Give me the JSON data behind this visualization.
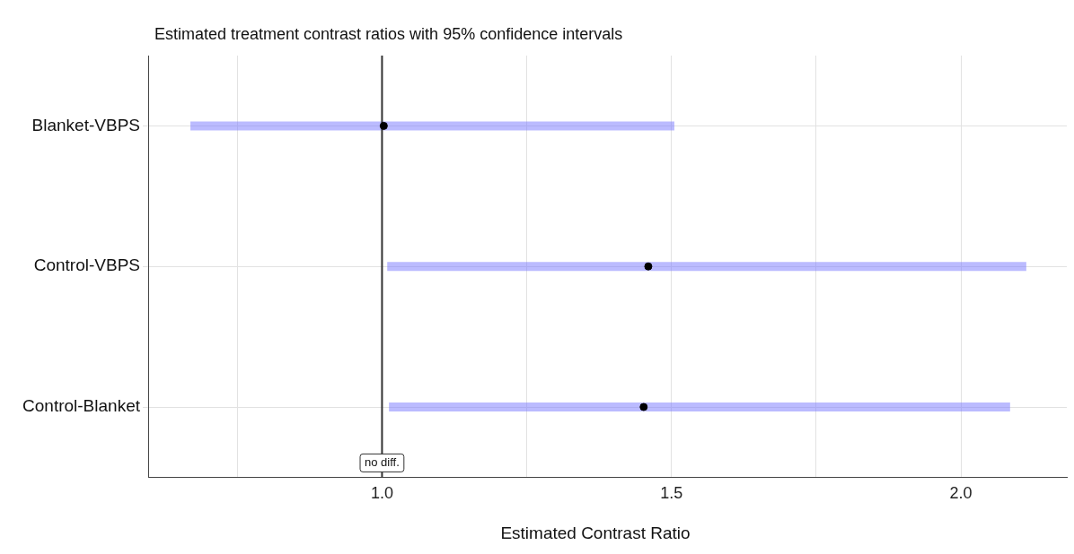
{
  "chart_data": {
    "type": "scatter",
    "orientation": "horizontal",
    "title": "Estimated treatment contrast ratios with 95% confidence intervals",
    "xlabel": "Estimated Contrast Ratio",
    "categories": [
      "Blanket-VBPS",
      "Control-VBPS",
      "Control-Blanket"
    ],
    "series": [
      {
        "color": "#000000",
        "values": [
          1.003,
          1.46,
          1.452
        ],
        "errors": [
          [
            0.669,
            1.505
          ],
          [
            1.009,
            2.113
          ],
          [
            1.012,
            2.085
          ]
        ]
      }
    ],
    "xlim": [
      0.596,
      2.183
    ],
    "xticks": [
      {
        "value": 0.75,
        "label": null
      },
      {
        "value": 1,
        "label": "1.0"
      },
      {
        "value": 1.25,
        "label": null
      },
      {
        "value": 1.5,
        "label": "1.5"
      },
      {
        "value": 1.75,
        "label": null
      },
      {
        "value": 2,
        "label": "2.0"
      }
    ],
    "ref_lines": [
      {
        "axis": "x",
        "value": 1,
        "label": "no diff.",
        "color": "#333333"
      }
    ],
    "grid": true,
    "legend": false,
    "marker": "circle"
  }
}
